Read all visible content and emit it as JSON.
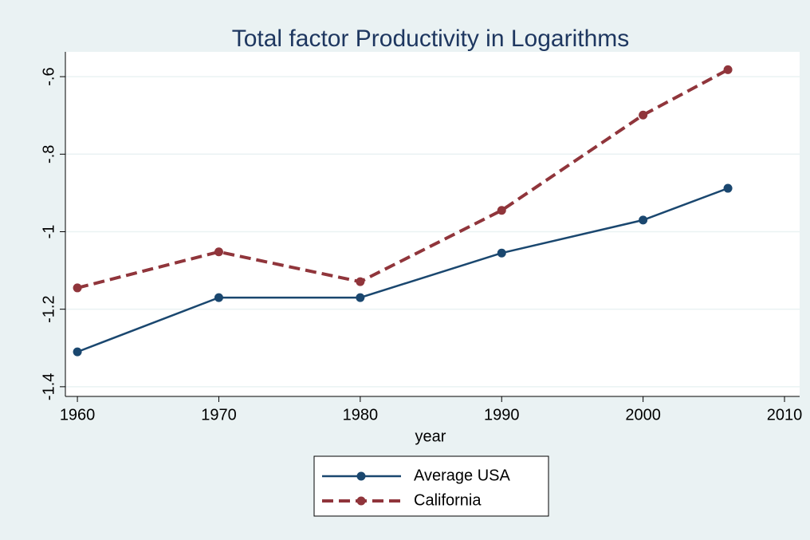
{
  "chart_data": {
    "type": "line",
    "title": "Total factor Productivity in Logarithms",
    "x_label": "year",
    "x": [
      1960,
      1970,
      1980,
      1990,
      2000,
      2006
    ],
    "series": [
      {
        "name": "Average USA",
        "color": "#1a476f",
        "line_style": "solid",
        "values": [
          -1.31,
          -1.17,
          -1.17,
          -1.055,
          -0.97,
          -0.888
        ]
      },
      {
        "name": "California",
        "color": "#90353b",
        "line_style": "dashed",
        "values": [
          -1.145,
          -1.052,
          -1.129,
          -0.945,
          -0.699,
          -0.582
        ]
      }
    ],
    "xlim": [
      1959.15,
      2011.07
    ],
    "xticks": [
      1960,
      1970,
      1980,
      1990,
      2000,
      2010
    ],
    "ylim": [
      -1.425,
      -0.536
    ],
    "yticks": [
      {
        "value": -1.4,
        "label": "-1.4"
      },
      {
        "value": -1.2,
        "label": "-1.2"
      },
      {
        "value": -1,
        "label": "-1"
      },
      {
        "value": -0.8,
        "label": "-.8"
      },
      {
        "value": -0.6,
        "label": "-.6"
      }
    ],
    "grid": true,
    "legend": "bottom"
  }
}
